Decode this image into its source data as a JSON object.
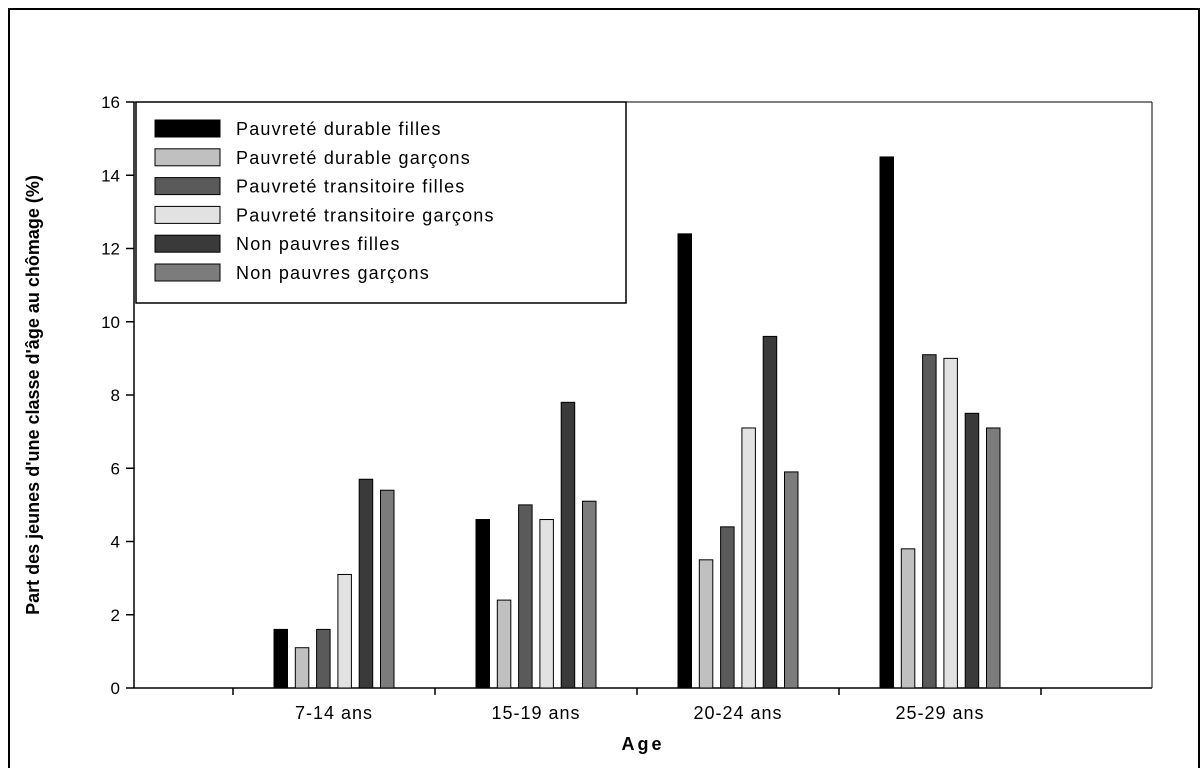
{
  "chart_data": {
    "type": "bar",
    "xlabel": "Age",
    "ylabel": "Part des jeunes d'une classe d'âge au chômage (%)",
    "ylim": [
      0,
      16
    ],
    "yticks": [
      0,
      2,
      4,
      6,
      8,
      10,
      12,
      14,
      16
    ],
    "categories": [
      "7-14 ans",
      "15-19 ans",
      "20-24 ans",
      "25-29 ans"
    ],
    "legend_position": "top-left",
    "grid": false,
    "series": [
      {
        "name": "Pauvreté durable filles",
        "color": "#000000",
        "values": [
          1.6,
          4.6,
          12.4,
          14.5
        ]
      },
      {
        "name": "Pauvreté durable garçons",
        "color": "#c0c0c0",
        "values": [
          1.1,
          2.4,
          3.5,
          3.8
        ]
      },
      {
        "name": "Pauvreté transitoire filles",
        "color": "#5a5a5a",
        "values": [
          1.6,
          5.0,
          4.4,
          9.1
        ]
      },
      {
        "name": "Pauvreté transitoire garçons",
        "color": "#e2e2e2",
        "values": [
          3.1,
          4.6,
          7.1,
          9.0
        ]
      },
      {
        "name": "Non pauvres filles",
        "color": "#3a3a3a",
        "values": [
          5.7,
          7.8,
          9.6,
          7.5
        ]
      },
      {
        "name": "Non pauvres garçons",
        "color": "#7c7c7c",
        "values": [
          5.4,
          5.1,
          5.9,
          7.1
        ]
      }
    ]
  }
}
